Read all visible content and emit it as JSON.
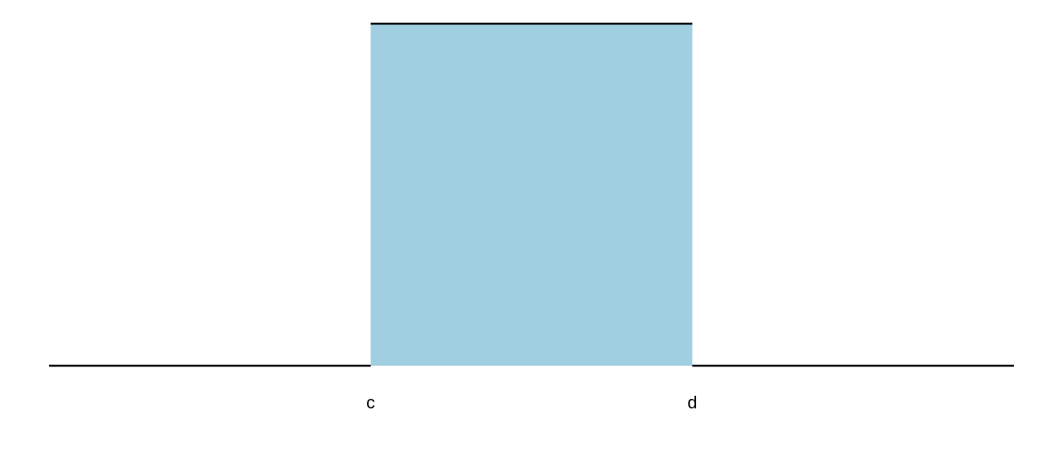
{
  "chart_data": {
    "type": "area",
    "title": "",
    "xlabel": "",
    "ylabel": "",
    "xlim": [
      -1,
      2
    ],
    "ylim": [
      0,
      1
    ],
    "grid": false,
    "fill_color": "#9fcfe0",
    "line_color": "#000000",
    "x_ticks": [
      {
        "value": 0,
        "label": "c"
      },
      {
        "value": 1,
        "label": "d"
      }
    ],
    "density": {
      "lower": 0,
      "upper": 1,
      "height": 1
    }
  }
}
